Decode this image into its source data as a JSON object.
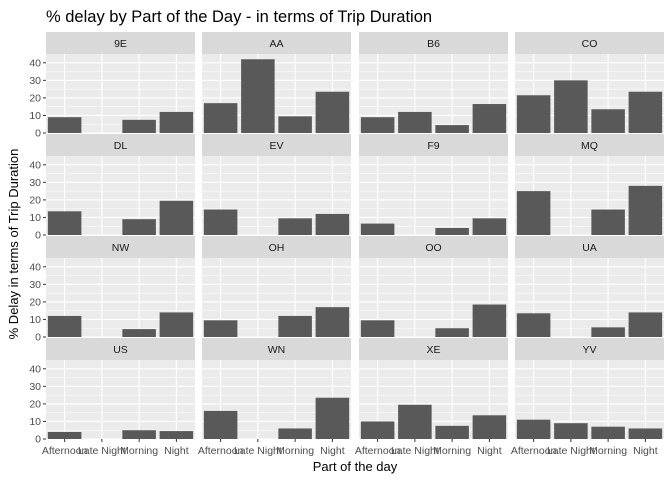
{
  "chart_data": {
    "type": "bar",
    "title": "% delay by Part of the Day - in terms of Trip Duration",
    "xlabel": "Part of the day",
    "ylabel": "% Delay in terms of Trip Duration",
    "categories": [
      "Afternoon",
      "Late Night",
      "Morning",
      "Night"
    ],
    "ylim": [
      0,
      45
    ],
    "yticks": [
      0,
      10,
      20,
      30,
      40
    ],
    "grid": true,
    "facets": [
      {
        "name": "9E",
        "values": [
          9,
          null,
          7.5,
          12
        ]
      },
      {
        "name": "AA",
        "values": [
          17,
          42,
          9.5,
          23.5
        ]
      },
      {
        "name": "B6",
        "values": [
          9,
          12,
          4.5,
          16.5
        ]
      },
      {
        "name": "CO",
        "values": [
          21.5,
          30,
          13.5,
          23.5
        ]
      },
      {
        "name": "DL",
        "values": [
          13.5,
          null,
          9,
          19.5
        ]
      },
      {
        "name": "EV",
        "values": [
          14.5,
          null,
          9.5,
          12
        ]
      },
      {
        "name": "F9",
        "values": [
          6.5,
          null,
          4,
          9.5
        ]
      },
      {
        "name": "MQ",
        "values": [
          25,
          null,
          14.5,
          28
        ]
      },
      {
        "name": "NW",
        "values": [
          12,
          null,
          4.5,
          14
        ]
      },
      {
        "name": "OH",
        "values": [
          9.5,
          null,
          12,
          17
        ]
      },
      {
        "name": "OO",
        "values": [
          9.5,
          null,
          5,
          18.5
        ]
      },
      {
        "name": "UA",
        "values": [
          13.5,
          null,
          5.5,
          14
        ]
      },
      {
        "name": "US",
        "values": [
          4,
          null,
          5,
          4.5
        ]
      },
      {
        "name": "WN",
        "values": [
          16,
          null,
          6,
          23.5
        ]
      },
      {
        "name": "XE",
        "values": [
          10,
          19.5,
          7.5,
          13.5
        ]
      },
      {
        "name": "YV",
        "values": [
          11,
          9,
          7,
          6
        ]
      }
    ]
  },
  "colors": {
    "bar": "#595959",
    "panel_bg": "#ebebeb",
    "grid": "#ffffff",
    "strip_bg": "#d9d9d9"
  }
}
